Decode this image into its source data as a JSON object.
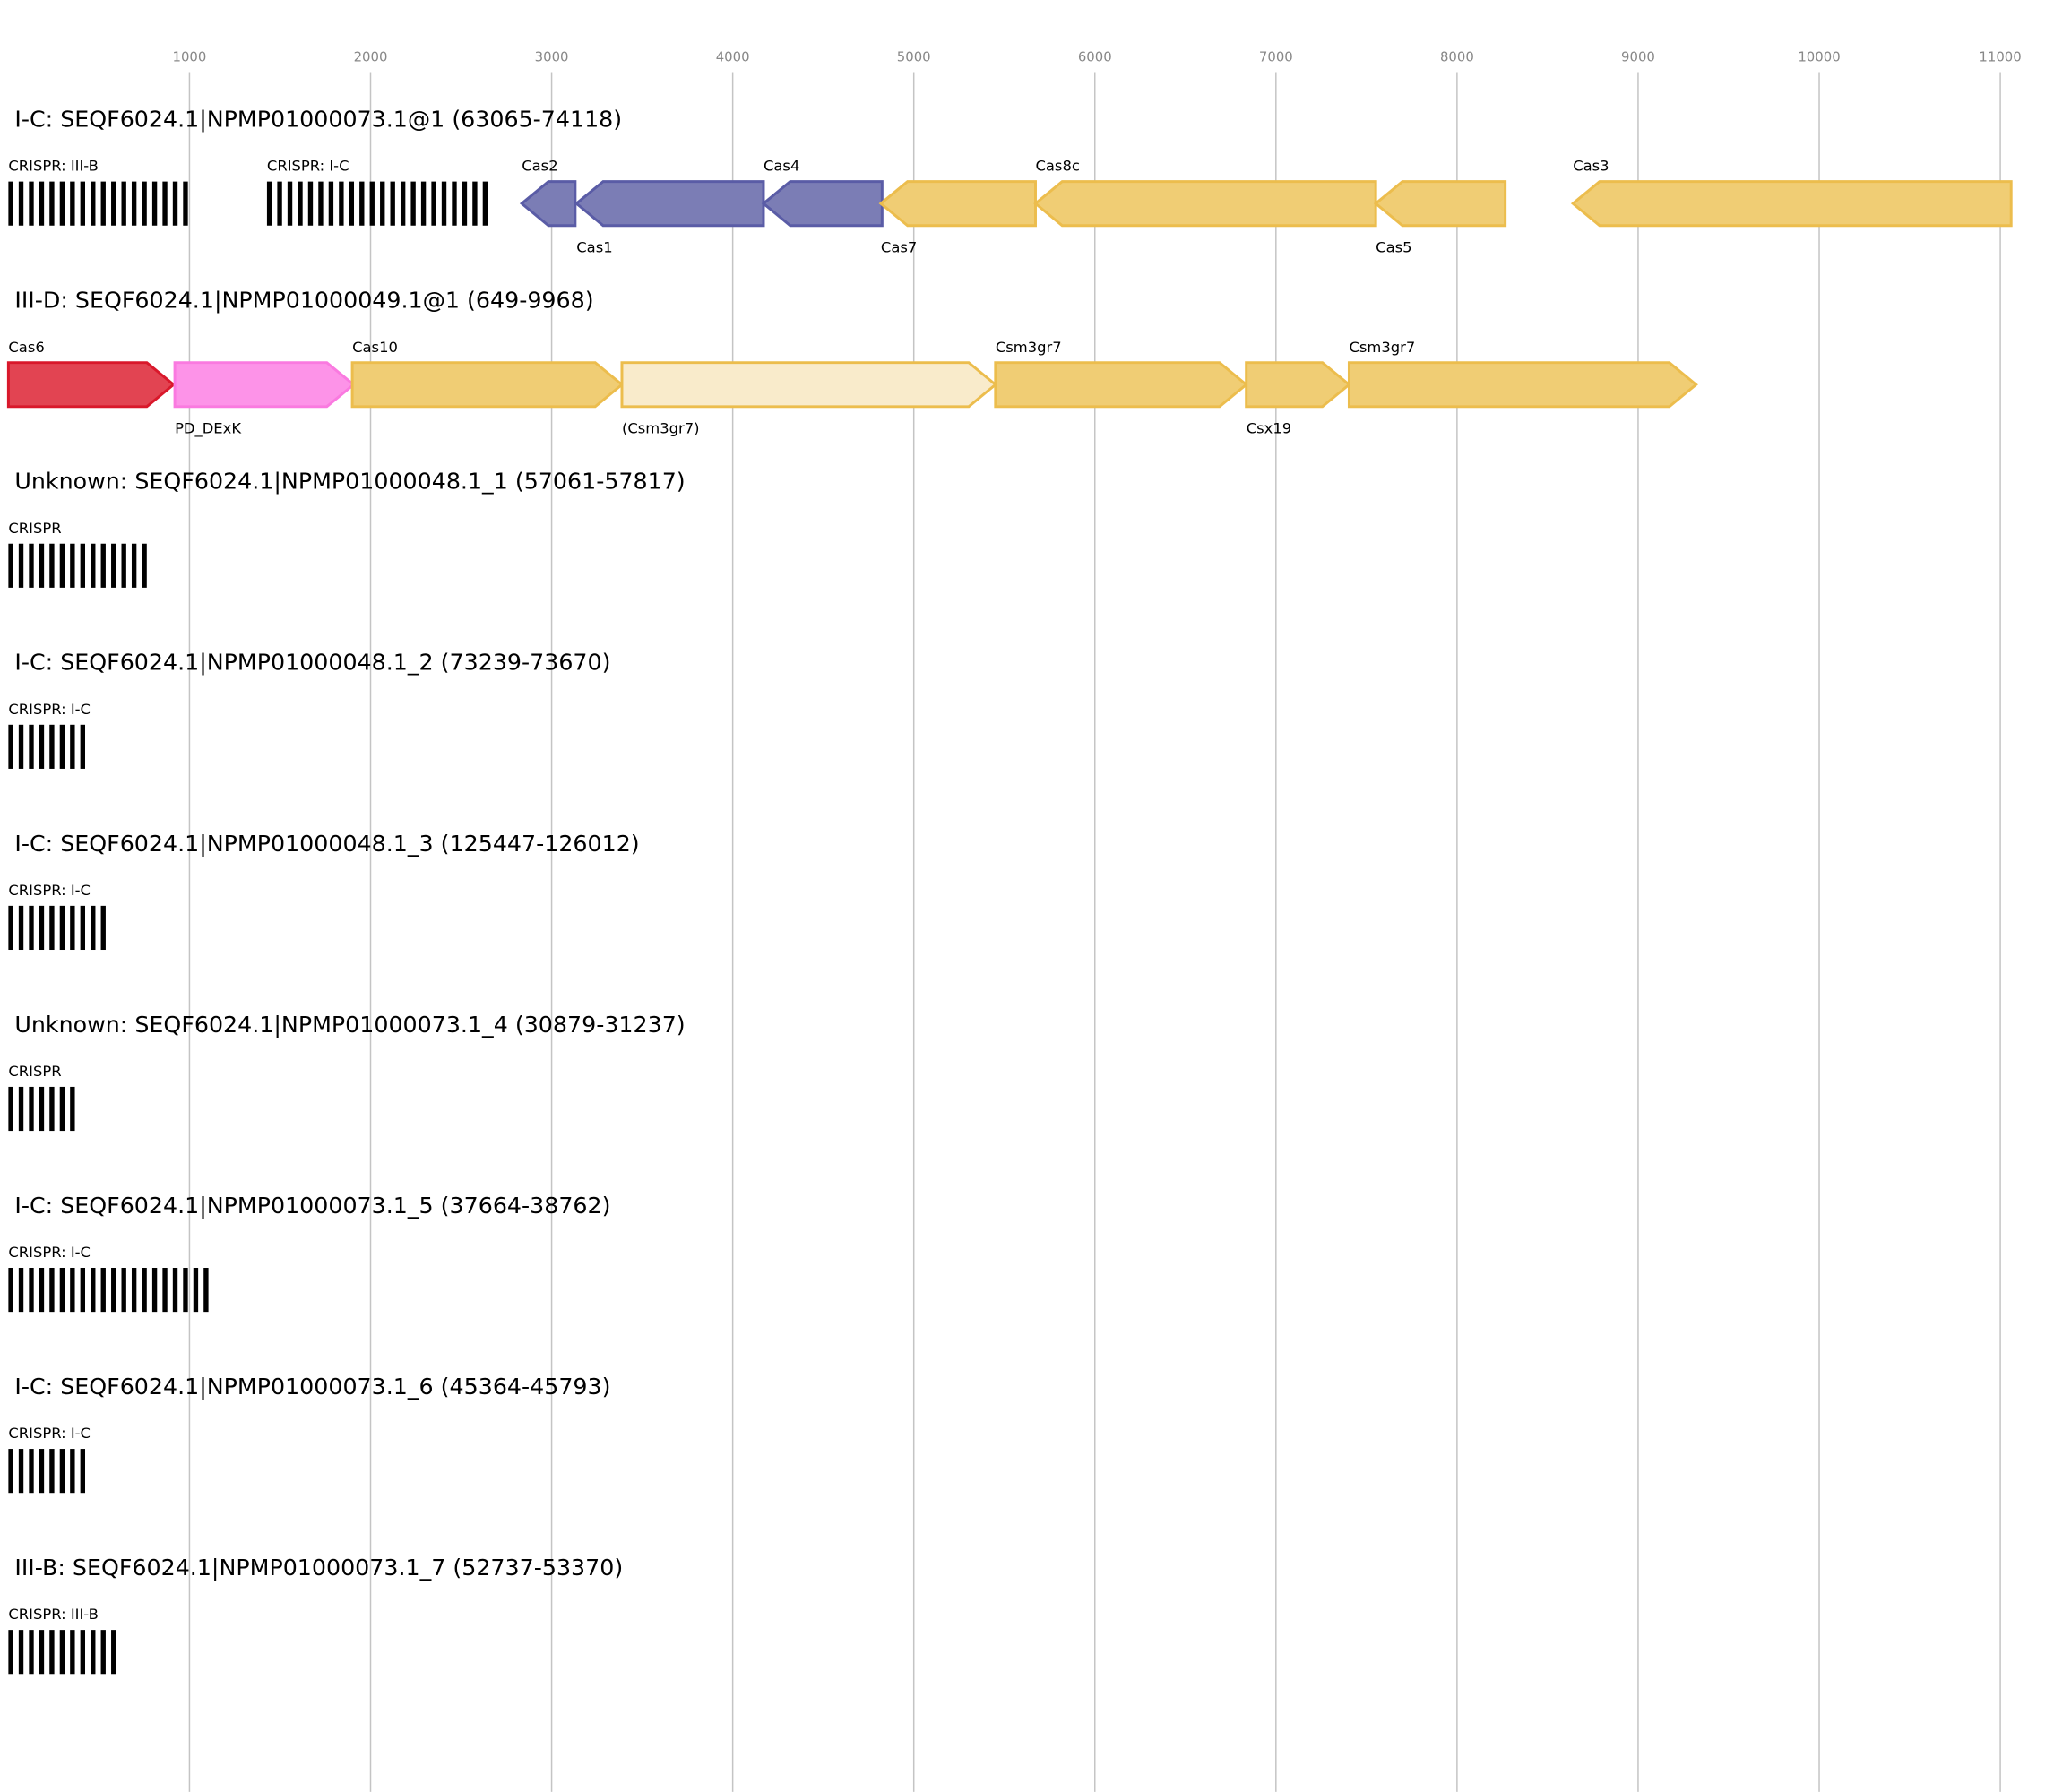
{
  "axis": {
    "ticks": [
      1000,
      2000,
      3000,
      4000,
      5000,
      6000,
      7000,
      8000,
      9000,
      10000,
      11000
    ],
    "range": [
      0,
      11400
    ]
  },
  "colors": {
    "purple": {
      "fill": "#7b7db5",
      "stroke": "#5a5ca6"
    },
    "yellow": {
      "fill": "#f0cd74",
      "stroke": "#ecbd4d"
    },
    "yellow_light": {
      "fill": "#f9ebcb",
      "stroke": "#ecbd4d"
    },
    "red": {
      "fill": "#e24452",
      "stroke": "#d9182b"
    },
    "pink": {
      "fill": "#fd93e8",
      "stroke": "#fa7ae0"
    },
    "crispr": "#000000"
  },
  "loci": [
    {
      "title": "I-C: SEQF6024.1|NPMP01000073.1@1 (63065-74118)",
      "features": [
        {
          "type": "crispr",
          "label": "CRISPR: III-B",
          "start": 0,
          "end": 1030,
          "label_pos": "above"
        },
        {
          "type": "crispr",
          "label": "CRISPR: I-C",
          "start": 1428,
          "end": 2658,
          "label_pos": "above"
        },
        {
          "type": "gene",
          "label": "Cas2",
          "start": 2835,
          "end": 3130,
          "strand": "-",
          "color": "purple",
          "label_pos": "above"
        },
        {
          "type": "gene",
          "label": "Cas1",
          "start": 3137,
          "end": 4170,
          "strand": "-",
          "color": "purple",
          "label_pos": "below"
        },
        {
          "type": "gene",
          "label": "Cas4",
          "start": 4170,
          "end": 4825,
          "strand": "-",
          "color": "purple",
          "label_pos": "above"
        },
        {
          "type": "gene",
          "label": "Cas7",
          "start": 4818,
          "end": 5672,
          "strand": "-",
          "color": "yellow",
          "label_pos": "below"
        },
        {
          "type": "gene",
          "label": "Cas8c",
          "start": 5672,
          "end": 7551,
          "strand": "-",
          "color": "yellow",
          "label_pos": "above"
        },
        {
          "type": "gene",
          "label": "Cas5",
          "start": 7551,
          "end": 8266,
          "strand": "-",
          "color": "yellow",
          "label_pos": "below"
        },
        {
          "type": "gene",
          "label": "Cas3",
          "start": 8640,
          "end": 11060,
          "strand": "-",
          "color": "yellow",
          "label_pos": "above"
        }
      ]
    },
    {
      "title": "III-D: SEQF6024.1|NPMP01000049.1@1 (649-9968)",
      "features": [
        {
          "type": "gene",
          "label": "Cas6",
          "start": 0,
          "end": 912,
          "strand": "+",
          "color": "red",
          "label_pos": "above"
        },
        {
          "type": "gene",
          "label": "PD_DExK",
          "start": 919,
          "end": 1906,
          "strand": "+",
          "color": "pink",
          "label_pos": "below"
        },
        {
          "type": "gene",
          "label": "Cas10",
          "start": 1899,
          "end": 3388,
          "strand": "+",
          "color": "yellow",
          "label_pos": "above"
        },
        {
          "type": "gene",
          "label": "(Csm3gr7)",
          "start": 3388,
          "end": 5451,
          "strand": "+",
          "color": "yellow_light",
          "label_pos": "below"
        },
        {
          "type": "gene",
          "label": "Csm3gr7",
          "start": 5451,
          "end": 6836,
          "strand": "+",
          "color": "yellow",
          "label_pos": "above"
        },
        {
          "type": "gene",
          "label": "Csx19",
          "start": 6836,
          "end": 7404,
          "strand": "+",
          "color": "yellow",
          "label_pos": "below"
        },
        {
          "type": "gene",
          "label": "Csm3gr7",
          "start": 7404,
          "end": 9320,
          "strand": "+",
          "color": "yellow",
          "label_pos": "above"
        }
      ]
    },
    {
      "title": "Unknown: SEQF6024.1|NPMP01000048.1_1 (57061-57817)",
      "features": [
        {
          "type": "crispr",
          "label": "CRISPR",
          "start": 0,
          "end": 764,
          "label_pos": "above"
        }
      ]
    },
    {
      "title": "I-C: SEQF6024.1|NPMP01000048.1_2 (73239-73670)",
      "features": [
        {
          "type": "crispr",
          "label": "CRISPR: I-C",
          "start": 0,
          "end": 440,
          "label_pos": "above"
        }
      ]
    },
    {
      "title": "I-C: SEQF6024.1|NPMP01000048.1_3 (125447-126012)",
      "features": [
        {
          "type": "crispr",
          "label": "CRISPR: I-C",
          "start": 0,
          "end": 570,
          "label_pos": "above"
        }
      ]
    },
    {
      "title": "Unknown: SEQF6024.1|NPMP01000073.1_4 (30879-31237)",
      "features": [
        {
          "type": "crispr",
          "label": "CRISPR",
          "start": 0,
          "end": 366,
          "label_pos": "above"
        }
      ]
    },
    {
      "title": "I-C: SEQF6024.1|NPMP01000073.1_5 (37664-38762)",
      "features": [
        {
          "type": "crispr",
          "label": "CRISPR: I-C",
          "start": 0,
          "end": 1104,
          "label_pos": "above"
        }
      ]
    },
    {
      "title": "I-C: SEQF6024.1|NPMP01000073.1_6 (45364-45793)",
      "features": [
        {
          "type": "crispr",
          "label": "CRISPR: I-C",
          "start": 0,
          "end": 440,
          "label_pos": "above"
        }
      ]
    },
    {
      "title": "III-B: SEQF6024.1|NPMP01000073.1_7 (52737-53370)",
      "features": [
        {
          "type": "crispr",
          "label": "CRISPR: III-B",
          "start": 0,
          "end": 640,
          "label_pos": "above"
        }
      ]
    }
  ]
}
